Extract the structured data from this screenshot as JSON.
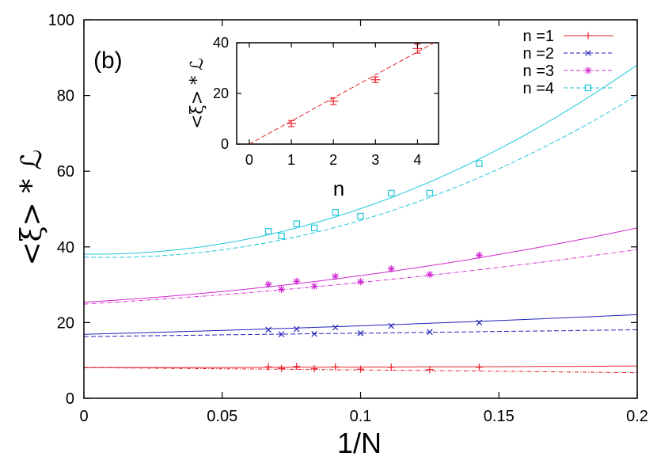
{
  "chart_data": [
    {
      "type": "line",
      "panel_label": "(b)",
      "xlabel": "1/N",
      "ylabel": "<ξ> * ℒ",
      "xlim": [
        0,
        0.2
      ],
      "ylim": [
        0,
        100
      ],
      "x_ticks": [
        "0",
        "0.05",
        "0.1",
        "0.15",
        "0.2"
      ],
      "y_ticks": [
        "0",
        "20",
        "40",
        "60",
        "80",
        "100"
      ],
      "legend_position": "top-right",
      "series": [
        {
          "name": "n =1",
          "color": "#e8202a",
          "marker": "plus",
          "points_a": {
            "x": [
              0.0667,
              0.0769,
              0.0909,
              0.1111,
              0.1429
            ],
            "y": [
              8.3,
              8.4,
              8.3,
              8.2,
              8.2
            ]
          },
          "points_b": {
            "x": [
              0.0714,
              0.0833,
              0.1,
              0.125
            ],
            "y": [
              7.9,
              7.8,
              7.7,
              7.6
            ]
          },
          "fit_a": {
            "a": 8.1,
            "b": 0.5,
            "c": 8
          },
          "fit_b": {
            "a": 8.1,
            "b": -5.5,
            "c": -6
          }
        },
        {
          "name": "n =2",
          "color": "#2222bb",
          "marker": "x",
          "points_a": {
            "x": [
              0.0667,
              0.0769,
              0.0909,
              0.1111,
              0.1429
            ],
            "y": [
              18.1,
              18.3,
              18.7,
              19.1,
              20.0
            ]
          },
          "points_b": {
            "x": [
              0.0714,
              0.0833,
              0.1,
              0.125
            ],
            "y": [
              16.9,
              17.0,
              17.2,
              17.5
            ]
          },
          "fit_a": {
            "a": 16.9,
            "b": 19,
            "c": 35
          },
          "fit_b": {
            "a": 16.3,
            "b": 9,
            "c": 0
          }
        },
        {
          "name": "n =3",
          "color": "#d02ad0",
          "marker": "star",
          "points_a": {
            "x": [
              0.0667,
              0.0769,
              0.0909,
              0.1111,
              0.1429
            ],
            "y": [
              30.1,
              30.9,
              32.2,
              34.2,
              37.8
            ]
          },
          "points_b": {
            "x": [
              0.0714,
              0.0833,
              0.1,
              0.125
            ],
            "y": [
              28.8,
              29.6,
              30.8,
              32.7
            ]
          },
          "fit_a": {
            "a": 25.4,
            "b": 42,
            "c": 280
          },
          "fit_b": {
            "a": 24.9,
            "b": 42,
            "c": 150
          }
        },
        {
          "name": "n =4",
          "color": "#1ec8d8",
          "marker": "square",
          "points_a": {
            "x": [
              0.0667,
              0.0769,
              0.0909,
              0.1111,
              0.1429
            ],
            "y": [
              44.1,
              46.1,
              49.1,
              54.2,
              62.0
            ]
          },
          "points_b": {
            "x": [
              0.0714,
              0.0833,
              0.1,
              0.125
            ],
            "y": [
              42.9,
              45.0,
              48.1,
              54.2
            ]
          },
          "fit_a": {
            "a": 38.1,
            "b": -10,
            "c": 1300
          },
          "fit_b": {
            "a": 37.3,
            "b": -20,
            "c": 1170
          }
        }
      ]
    },
    {
      "type": "scatter",
      "xlabel": "n",
      "ylabel": "<ξ> * ℒ",
      "xlim": [
        -0.3,
        4.5
      ],
      "ylim": [
        0,
        40
      ],
      "x_ticks": [
        "0",
        "1",
        "2",
        "3",
        "4"
      ],
      "y_ticks": [
        "0",
        "20",
        "40"
      ],
      "color": "#e8202a",
      "x": [
        1,
        2,
        3,
        4
      ],
      "y": [
        8.1,
        16.9,
        25.4,
        37.7
      ],
      "yerr": [
        1.2,
        1.3,
        1.1,
        1.8
      ],
      "fit_slope": 9.1
    }
  ]
}
